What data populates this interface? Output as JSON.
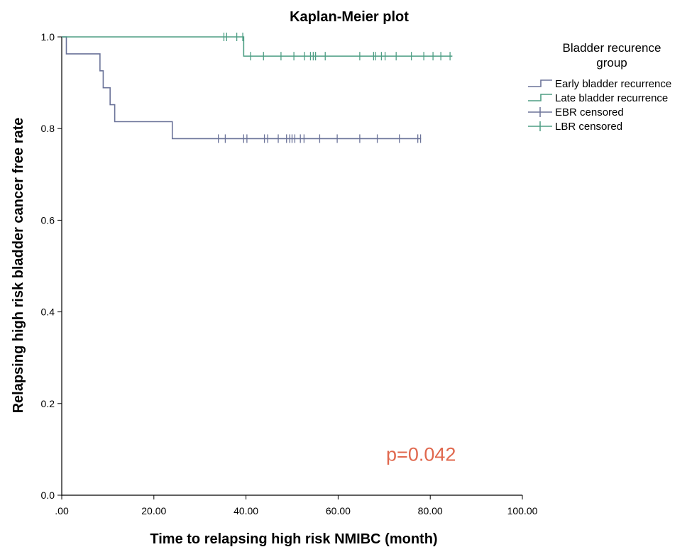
{
  "colors": {
    "early": "#6B7399",
    "late": "#4E9E84",
    "axis": "#000000",
    "annotation": "#E0684E",
    "background": "#FFFFFF"
  },
  "chart_data": {
    "type": "line",
    "subtype": "kaplan-meier",
    "title": "Kaplan-Meier plot",
    "xlabel": "Time to relapsing high risk NMIBC (month)",
    "ylabel": "Relapsing high risk bladder cancer free rate",
    "xlim": [
      0,
      100
    ],
    "ylim": [
      0,
      1
    ],
    "x_ticks": [
      0,
      20,
      40,
      60,
      80,
      100
    ],
    "x_tick_labels": [
      ".00",
      "20.00",
      "40.00",
      "60.00",
      "80.00",
      "100.00"
    ],
    "y_ticks": [
      0,
      0.2,
      0.4,
      0.6,
      0.8,
      1.0
    ],
    "y_tick_labels": [
      "0.0",
      "0.2",
      "0.4",
      "0.6",
      "0.8",
      "1.0"
    ],
    "grid": false,
    "legend": {
      "title": "Bladder recurence group",
      "title_lines": [
        "Bladder recurence",
        "group"
      ],
      "position": "top-right",
      "entries": [
        {
          "label": "Early bladder recurrence",
          "symbol": "step",
          "color_key": "early"
        },
        {
          "label": "Late bladder recurrence",
          "symbol": "step",
          "color_key": "late"
        },
        {
          "label": "EBR censored",
          "symbol": "cross",
          "color_key": "early"
        },
        {
          "label": "LBR censored",
          "symbol": "cross",
          "color_key": "late"
        }
      ]
    },
    "series": [
      {
        "name": "Early bladder recurrence",
        "color_key": "early",
        "steps": [
          [
            0,
            1.0
          ],
          [
            1.0,
            0.963
          ],
          [
            8.3,
            0.926
          ],
          [
            9.0,
            0.889
          ],
          [
            10.5,
            0.852
          ],
          [
            11.5,
            0.815
          ],
          [
            24.0,
            0.778
          ]
        ],
        "end_x": 78.0,
        "censored": [
          34.0,
          35.5,
          39.5,
          40.2,
          44.0,
          44.7,
          47.0,
          48.8,
          49.5,
          50.0,
          50.6,
          51.8,
          52.6,
          56.0,
          59.8,
          64.7,
          68.5,
          73.3,
          77.3,
          77.9
        ]
      },
      {
        "name": "Late bladder recurrence",
        "color_key": "late",
        "steps": [
          [
            0,
            1.0
          ],
          [
            39.5,
            0.958
          ]
        ],
        "end_x": 84.8,
        "censored": [
          35.2,
          35.8,
          38.0,
          39.3,
          41.0,
          43.8,
          47.6,
          50.4,
          52.7,
          54.0,
          54.6,
          55.1,
          57.2,
          64.7,
          67.7,
          68.1,
          69.4,
          70.2,
          72.6,
          75.9,
          78.6,
          80.6,
          82.3,
          84.3
        ]
      }
    ],
    "annotations": [
      {
        "text": "p=0.042",
        "x": 78,
        "y": 0.075,
        "color_key": "annotation"
      }
    ]
  }
}
